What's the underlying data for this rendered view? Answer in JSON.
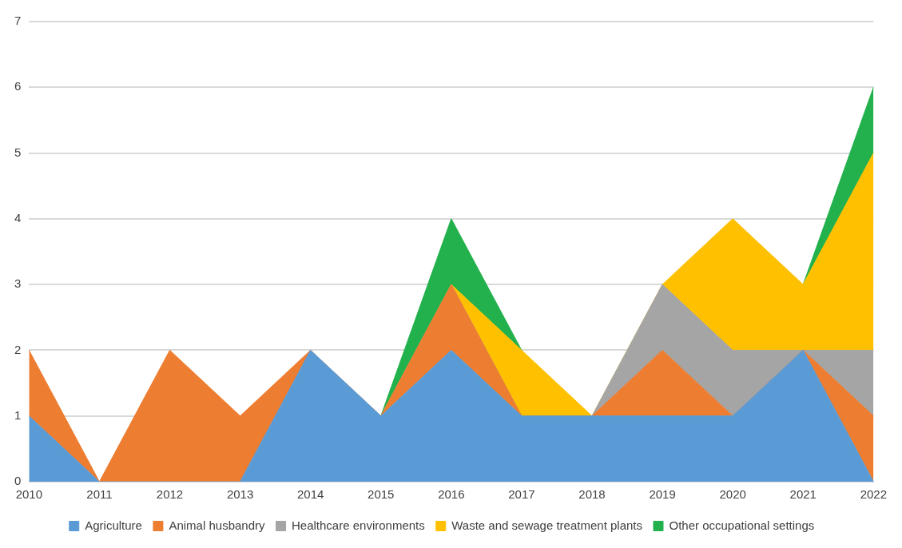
{
  "chart_data": {
    "type": "area",
    "stacked": true,
    "categories": [
      "2010",
      "2011",
      "2012",
      "2013",
      "2014",
      "2015",
      "2016",
      "2017",
      "2018",
      "2019",
      "2020",
      "2021",
      "2022"
    ],
    "series": [
      {
        "name": "Agriculture",
        "color": "#5b9bd5",
        "values": [
          1,
          0,
          0,
          0,
          2,
          1,
          2,
          1,
          1,
          1,
          1,
          2,
          0
        ]
      },
      {
        "name": "Animal husbandry",
        "color": "#ed7d31",
        "values": [
          1,
          0,
          2,
          1,
          0,
          0,
          1,
          0,
          0,
          1,
          0,
          0,
          1
        ]
      },
      {
        "name": "Healthcare environments",
        "color": "#a5a5a5",
        "values": [
          null,
          null,
          null,
          null,
          null,
          0,
          0,
          0,
          0,
          1,
          1,
          0,
          1
        ]
      },
      {
        "name": "Waste and sewage treatment plants",
        "color": "#ffc000",
        "values": [
          null,
          null,
          null,
          null,
          null,
          0,
          0,
          1,
          0,
          0,
          2,
          1,
          3
        ]
      },
      {
        "name": "Other occupational settings",
        "color": "#22b14c",
        "values": [
          null,
          null,
          null,
          null,
          null,
          0,
          1,
          0,
          null,
          null,
          null,
          0,
          1
        ]
      }
    ],
    "ylim": [
      0,
      7
    ],
    "yticks": [
      0,
      1,
      2,
      3,
      4,
      5,
      6,
      7
    ],
    "grid": "y",
    "legend": "bottom"
  }
}
